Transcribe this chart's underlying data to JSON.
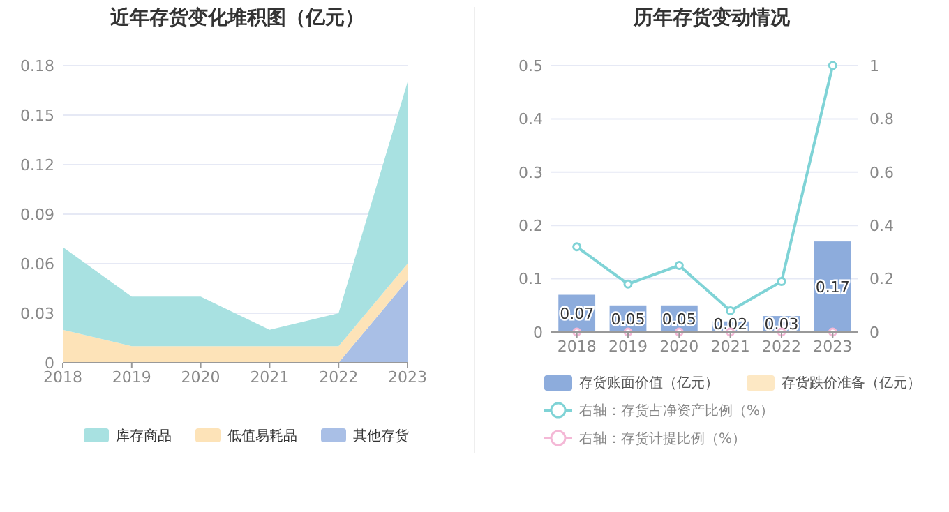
{
  "chart_data": [
    {
      "type": "area",
      "title": "近年存货变化堆积图（亿元）",
      "categories": [
        "2018",
        "2019",
        "2020",
        "2021",
        "2022",
        "2023"
      ],
      "stacked": true,
      "ylim": [
        0,
        0.18
      ],
      "yticks": [
        0,
        0.03,
        0.06,
        0.09,
        0.12,
        0.15,
        0.18
      ],
      "grid": "y",
      "legend": "bottom",
      "series": [
        {
          "name": "其他存货",
          "color": "#a9bfe6",
          "values": [
            0,
            0,
            0,
            0,
            0,
            0.05
          ]
        },
        {
          "name": "低值易耗品",
          "color": "#fde3b8",
          "values": [
            0.02,
            0.01,
            0.01,
            0.01,
            0.01,
            0.01
          ]
        },
        {
          "name": "库存商品",
          "color": "#a8e1e1",
          "values": [
            0.05,
            0.03,
            0.03,
            0.01,
            0.02,
            0.11
          ]
        }
      ]
    },
    {
      "type": "bar",
      "title": "历年存货变动情况",
      "categories": [
        "2018",
        "2019",
        "2020",
        "2021",
        "2022",
        "2023"
      ],
      "stacked": true,
      "ylim": [
        0,
        0.5
      ],
      "yticks": [
        0,
        0.1,
        0.2,
        0.3,
        0.4,
        0.5
      ],
      "y2lim": [
        0,
        1
      ],
      "y2ticks": [
        0,
        0.2,
        0.4,
        0.6,
        0.8,
        1
      ],
      "grid": "y",
      "legend": "bottom",
      "marker": "circle",
      "series": [
        {
          "name": "存货账面价值（亿元）",
          "color": "#8dacdc",
          "values": [
            0.07,
            0.05,
            0.05,
            0.02,
            0.03,
            0.17
          ],
          "value_labels": [
            "0.07",
            "0.05",
            "0.05",
            "0.02",
            "0.03",
            "0.17"
          ]
        },
        {
          "name": "存货跌价准备（亿元）",
          "color": "#fde8c4",
          "values": [
            0,
            0,
            0,
            0,
            0,
            0
          ]
        },
        {
          "name": "右轴：存货占净资产比例（%）",
          "type": "line",
          "axis": "y2",
          "color": "#7fd3d6",
          "values": [
            0.32,
            0.18,
            0.25,
            0.08,
            0.19,
            1
          ]
        },
        {
          "name": "右轴：存货计提比例（%）",
          "type": "line",
          "axis": "y2",
          "color": "#f4b8d6",
          "values": [
            0,
            0,
            0,
            0,
            0,
            0
          ]
        }
      ]
    }
  ]
}
